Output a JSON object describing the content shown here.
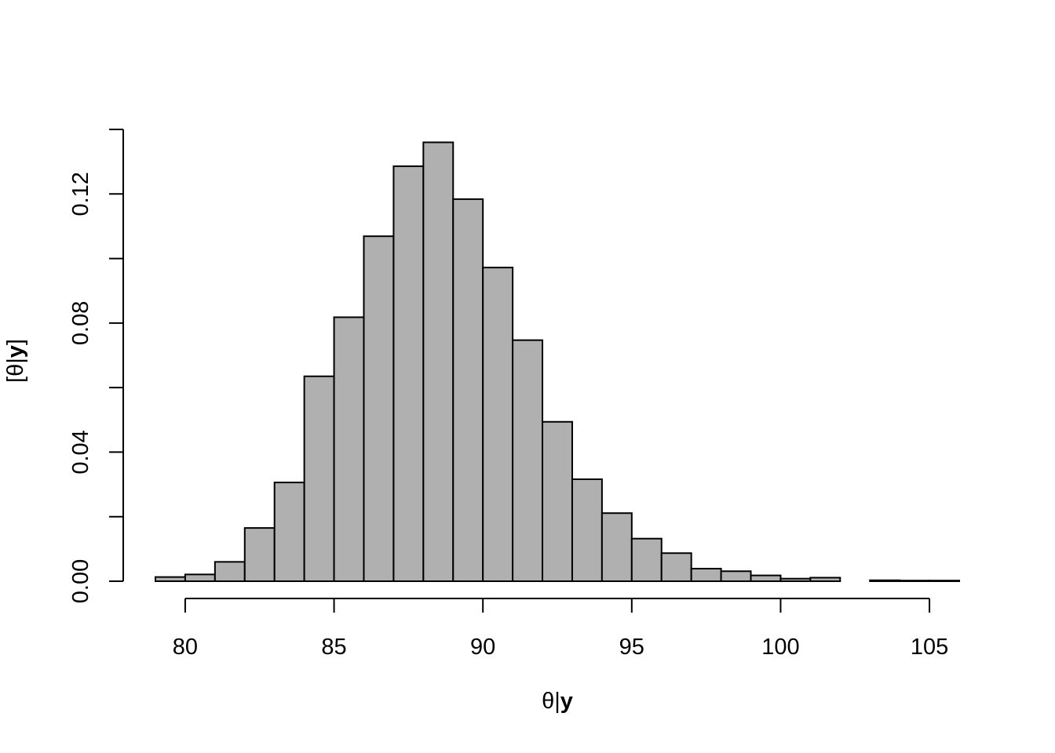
{
  "chart_data": {
    "type": "bar",
    "subtype": "histogram",
    "xlabel": {
      "prefix": "θ|",
      "bold": "y",
      "suffix": ""
    },
    "ylabel": {
      "prefix": "[θ|",
      "bold": "y",
      "suffix": "]"
    },
    "bin_edges": [
      79,
      80,
      81,
      82,
      83,
      84,
      85,
      86,
      87,
      88,
      89,
      90,
      91,
      92,
      93,
      94,
      95,
      96,
      97,
      98,
      99,
      100,
      101,
      102,
      103,
      104,
      105,
      106
    ],
    "values": [
      0.0013,
      0.0021,
      0.006,
      0.0165,
      0.0306,
      0.0635,
      0.0818,
      0.1069,
      0.1286,
      0.136,
      0.1184,
      0.0972,
      0.0747,
      0.0494,
      0.0316,
      0.0211,
      0.0132,
      0.0087,
      0.0039,
      0.0031,
      0.0018,
      0.0008,
      0.0011,
      0,
      0.0003,
      0.0002,
      0.0002
    ],
    "xlim": [
      79,
      106
    ],
    "ylim": [
      0,
      0.14
    ],
    "xticks": [
      80,
      85,
      90,
      95,
      100,
      105
    ],
    "xtick_labels": [
      "80",
      "85",
      "90",
      "95",
      "100",
      "105"
    ],
    "yticks": [
      0,
      0.02,
      0.04,
      0.06,
      0.08,
      0.1,
      0.12,
      0.14
    ],
    "ytick_labels": [
      "0.00",
      "",
      "0.04",
      "",
      "0.08",
      "",
      "0.12",
      ""
    ],
    "bar_color": "#b0b0b0",
    "grid": false,
    "legend": "none"
  }
}
